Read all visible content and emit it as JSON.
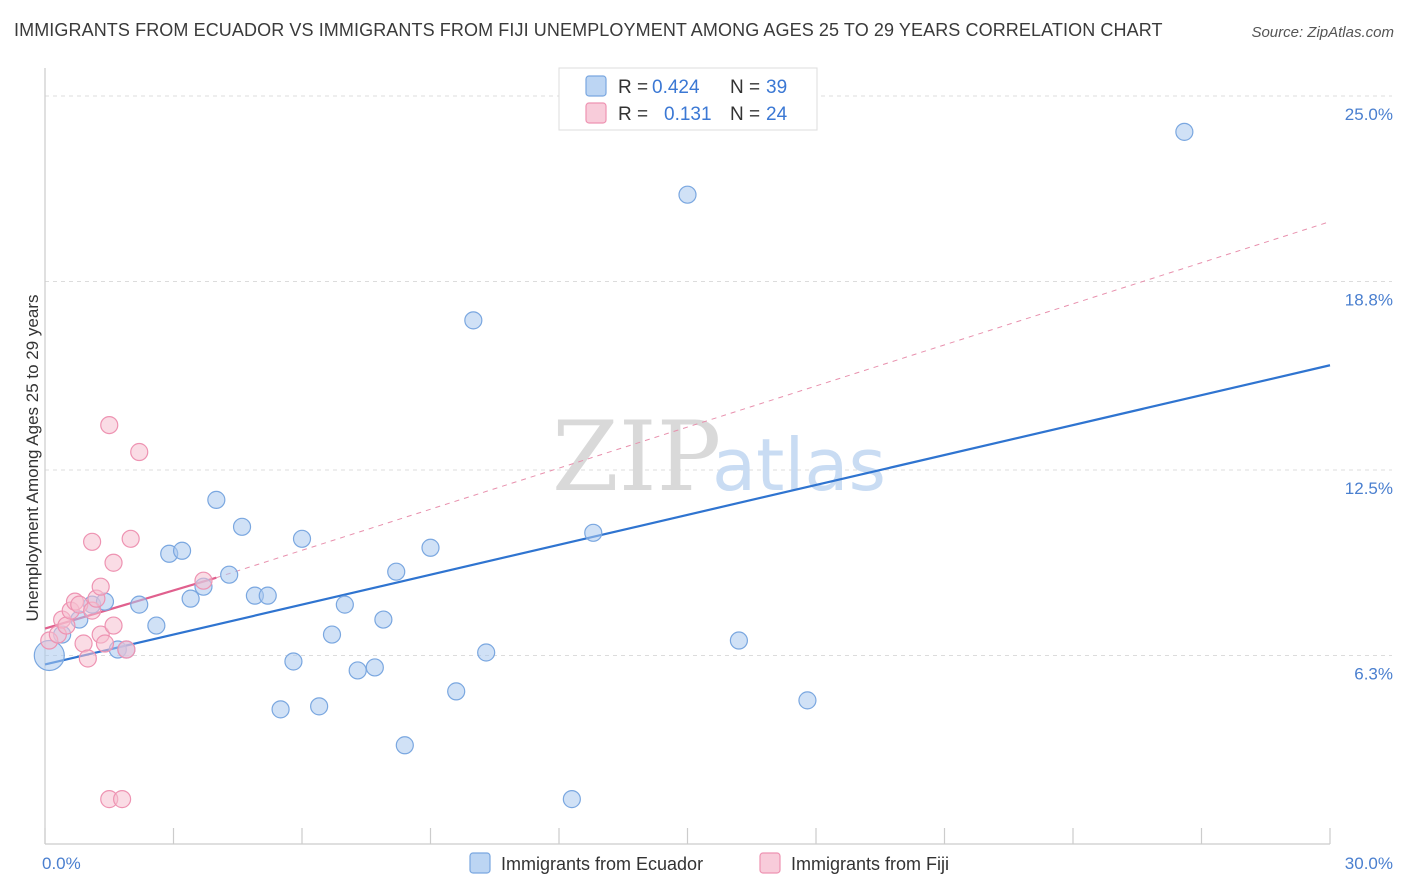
{
  "title": "IMMIGRANTS FROM ECUADOR VS IMMIGRANTS FROM FIJI UNEMPLOYMENT AMONG AGES 25 TO 29 YEARS CORRELATION CHART",
  "source": "Source: ZipAtlas.com",
  "watermark": {
    "part1": "ZIP",
    "part2": "atlas"
  },
  "chart_data": {
    "type": "scatter",
    "title": "IMMIGRANTS FROM ECUADOR VS IMMIGRANTS FROM FIJI UNEMPLOYMENT AMONG AGES 25 TO 29 YEARS CORRELATION CHART",
    "xlabel": "",
    "ylabel": "Unemployment Among Ages 25 to 29 years",
    "xlim": [
      0,
      30
    ],
    "ylim": [
      0,
      25.6
    ],
    "x_tick_labels": [
      {
        "value": 0,
        "label": "0.0%"
      },
      {
        "value": 30,
        "label": "30.0%"
      }
    ],
    "y_tick_labels": [
      {
        "value": 6.3,
        "label": "6.3%"
      },
      {
        "value": 12.5,
        "label": "12.5%"
      },
      {
        "value": 18.8,
        "label": "18.8%"
      },
      {
        "value": 25.0,
        "label": "25.0%"
      }
    ],
    "legend": {
      "placement": "top-center",
      "entries": [
        {
          "r_label": "R =",
          "r_value": "0.424",
          "n_label": "N =",
          "n_value": "39"
        },
        {
          "r_label": "R =",
          "r_value": "0.131",
          "n_label": "N =",
          "n_value": "24"
        }
      ]
    },
    "series": [
      {
        "name": "Immigrants from Ecuador",
        "color": "#a9c8ef",
        "stroke": "#7aa7e0",
        "trend": {
          "x0": 0,
          "y0": 6.0,
          "x1": 30,
          "y1": 16.0,
          "color": "#2f74d0",
          "style": "solid"
        },
        "points": [
          [
            0.1,
            6.3
          ],
          [
            0.4,
            7.0
          ],
          [
            0.8,
            7.5
          ],
          [
            1.1,
            8.0
          ],
          [
            1.4,
            8.1
          ],
          [
            1.7,
            6.5
          ],
          [
            1.9,
            6.5
          ],
          [
            2.2,
            8.0
          ],
          [
            2.6,
            7.3
          ],
          [
            2.9,
            9.7
          ],
          [
            3.2,
            9.8
          ],
          [
            3.4,
            8.2
          ],
          [
            3.7,
            8.6
          ],
          [
            4.0,
            11.5
          ],
          [
            4.3,
            9.0
          ],
          [
            4.6,
            10.6
          ],
          [
            4.9,
            8.3
          ],
          [
            5.2,
            8.3
          ],
          [
            5.5,
            4.5
          ],
          [
            5.8,
            6.1
          ],
          [
            6.0,
            10.2
          ],
          [
            6.4,
            4.6
          ],
          [
            6.7,
            7.0
          ],
          [
            7.0,
            8.0
          ],
          [
            7.3,
            5.8
          ],
          [
            7.7,
            5.9
          ],
          [
            7.9,
            7.5
          ],
          [
            8.2,
            9.1
          ],
          [
            8.4,
            3.3
          ],
          [
            9.0,
            9.9
          ],
          [
            9.6,
            5.1
          ],
          [
            10.0,
            17.5
          ],
          [
            10.3,
            6.4
          ],
          [
            12.3,
            1.5
          ],
          [
            12.8,
            10.4
          ],
          [
            15.0,
            21.7
          ],
          [
            16.2,
            6.8
          ],
          [
            17.8,
            4.8
          ],
          [
            26.6,
            23.8
          ]
        ]
      },
      {
        "name": "Immigrants from Fiji",
        "color": "#f6bfd0",
        "stroke": "#ee93b2",
        "trend": {
          "x0": 0,
          "y0": 7.2,
          "x1": 4.0,
          "y1": 8.9,
          "color": "#e0608e",
          "style": "solid"
        },
        "trend_extension": {
          "x0": 4.0,
          "y0": 8.9,
          "x1": 30,
          "y1": 20.8,
          "color": "#e890ad",
          "style": "dashed"
        },
        "points": [
          [
            0.1,
            6.8
          ],
          [
            0.3,
            7.0
          ],
          [
            0.4,
            7.5
          ],
          [
            0.5,
            7.3
          ],
          [
            0.6,
            7.8
          ],
          [
            0.7,
            8.1
          ],
          [
            0.8,
            8.0
          ],
          [
            0.9,
            6.7
          ],
          [
            1.0,
            6.2
          ],
          [
            1.1,
            7.8
          ],
          [
            1.1,
            10.1
          ],
          [
            1.2,
            8.2
          ],
          [
            1.3,
            7.0
          ],
          [
            1.3,
            8.6
          ],
          [
            1.4,
            6.7
          ],
          [
            1.5,
            1.5
          ],
          [
            1.5,
            14.0
          ],
          [
            1.6,
            7.3
          ],
          [
            1.6,
            9.4
          ],
          [
            1.8,
            1.5
          ],
          [
            1.9,
            6.5
          ],
          [
            2.0,
            10.2
          ],
          [
            2.2,
            13.1
          ],
          [
            3.7,
            8.8
          ]
        ]
      }
    ]
  },
  "bottom_legend": [
    {
      "label": "Immigrants from Ecuador",
      "color": "#bcd5f3",
      "stroke": "#7aa7e0"
    },
    {
      "label": "Immigrants from Fiji",
      "color": "#f8ccda",
      "stroke": "#ee93b2"
    }
  ]
}
